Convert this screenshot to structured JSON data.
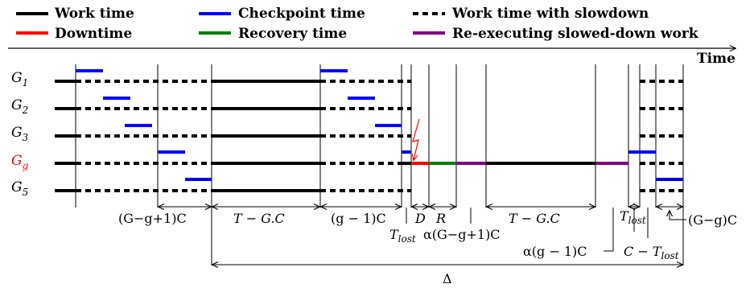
{
  "legend": {
    "work_time": "Work time",
    "checkpoint_time": "Checkpoint time",
    "work_slowdown": "Work time with slowdown",
    "downtime": "Downtime",
    "recovery_time": "Recovery time",
    "reexecuting": "Re-executing slowed-down work"
  },
  "axis": {
    "time_label": "Time"
  },
  "colors": {
    "work": "#000000",
    "checkpoint": "#0000ff",
    "downtime": "#ff0000",
    "recovery": "#008000",
    "reexec": "#800080",
    "failed_group_label": "#ff0000"
  },
  "rows": [
    {
      "id": "G1",
      "base": "G",
      "sub": "1",
      "failed": false
    },
    {
      "id": "G2",
      "base": "G",
      "sub": "2",
      "failed": false
    },
    {
      "id": "G3",
      "base": "G",
      "sub": "3",
      "failed": false
    },
    {
      "id": "Gg",
      "base": "G",
      "sub": "g",
      "failed": true
    },
    {
      "id": "G5",
      "base": "G",
      "sub": "5",
      "failed": false
    }
  ],
  "annotations": {
    "gg1c": "(G−g+1)C",
    "tgc1": "T − G.C",
    "g1c": "(g − 1)C",
    "d": "D",
    "r": "R",
    "tgc2": "T − G.C",
    "t_lost_1_base": "T",
    "t_lost_1_sub": "lost",
    "alpha_gg1c": "α(G−g+1)C",
    "alpha_g1c": "α(g − 1)C",
    "t_lost_2_base": "T",
    "t_lost_2_sub": "lost",
    "c_minus_base": "C − T",
    "c_minus_sub": "lost",
    "ggc": "(G−g)C",
    "delta": "Δ"
  }
}
